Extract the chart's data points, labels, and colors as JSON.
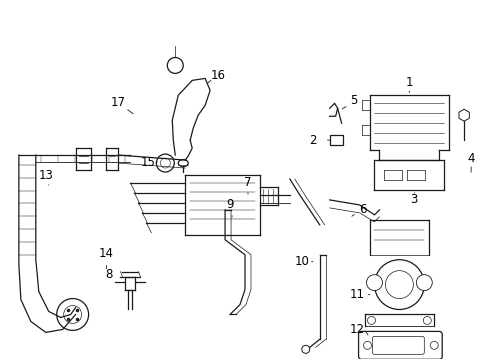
{
  "bg_color": "#ffffff",
  "line_color": "#1a1a1a",
  "label_color": "#000000",
  "font_size": 8.5,
  "fig_w": 4.89,
  "fig_h": 3.6,
  "dpi": 100
}
